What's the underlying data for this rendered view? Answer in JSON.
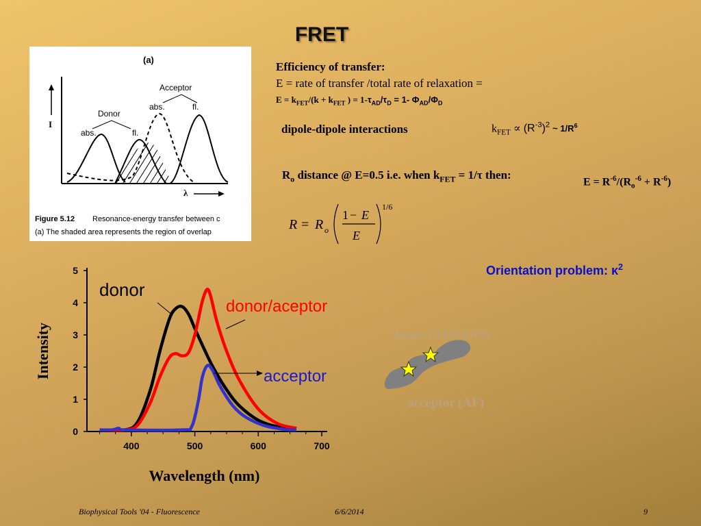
{
  "slide": {
    "title": "FRET",
    "footer": {
      "course": "Biophysical Tools '04 - Fluorescence",
      "date": "6/6/2014",
      "page": "9"
    }
  },
  "textbook_figure": {
    "panel_label": "(a)",
    "y_axis": "I",
    "x_axis": "λ",
    "donor_label": "Donor",
    "donor_abs": "abs.",
    "donor_fl": "fl.",
    "acceptor_label": "Acceptor",
    "acceptor_abs": "abs.",
    "acceptor_fl": "fl.",
    "caption_prefix": "Figure 5.12",
    "caption_line1": "Resonance-energy transfer between c",
    "caption_line2": "(a)  The shaded area represents the region of overlap"
  },
  "efficiency": {
    "heading": "Efficiency of transfer:",
    "definition": "E = rate of transfer /total rate of relaxation ="
  },
  "dipole": {
    "label": "dipole-dipole interactions",
    "approx": "~ 1/R"
  },
  "ro_line": {
    "text_a": "distance @ E=0.5 i.e. when k",
    "text_b": "= 1/τ then:"
  },
  "orientation": {
    "label": "Orientation problem: κ"
  },
  "molecule": {
    "donor_label": "donor (AEDANS)",
    "acceptor_label": "acceptor (AF)"
  },
  "chart_data": {
    "type": "line",
    "xlabel": "Wavelength (nm)",
    "ylabel": "Intensity",
    "xlim": [
      330,
      700
    ],
    "ylim": [
      0,
      5
    ],
    "x_ticks": [
      400,
      500,
      600,
      700
    ],
    "y_ticks": [
      0,
      1,
      2,
      3,
      4,
      5
    ],
    "series": [
      {
        "name": "donor",
        "color": "#000000",
        "x": [
          350,
          390,
          410,
          430,
          445,
          460,
          470,
          480,
          490,
          500,
          515,
          530,
          550,
          570,
          600,
          630,
          660
        ],
        "y": [
          0.05,
          0.05,
          0.3,
          1.3,
          2.5,
          3.5,
          3.82,
          3.88,
          3.65,
          3.2,
          2.55,
          1.95,
          1.3,
          0.8,
          0.35,
          0.15,
          0.08
        ]
      },
      {
        "name": "donor/aceptor",
        "color": "#ff0000",
        "x": [
          350,
          390,
          410,
          430,
          445,
          460,
          470,
          480,
          490,
          500,
          510,
          515,
          520,
          525,
          535,
          550,
          570,
          600,
          630,
          660
        ],
        "y": [
          0.05,
          0.05,
          0.2,
          0.9,
          1.7,
          2.3,
          2.42,
          2.35,
          2.45,
          3.0,
          3.9,
          4.25,
          4.42,
          4.2,
          3.4,
          2.5,
          1.6,
          0.7,
          0.25,
          0.1
        ]
      },
      {
        "name": "acceptor",
        "color": "#3333cc",
        "x": [
          350,
          370,
          380,
          390,
          480,
          495,
          505,
          512,
          520,
          528,
          540,
          560,
          580,
          610,
          640,
          660
        ],
        "y": [
          0.05,
          0.05,
          0.1,
          0.05,
          0.05,
          0.15,
          0.9,
          1.7,
          2.05,
          1.9,
          1.4,
          0.8,
          0.45,
          0.18,
          0.07,
          0.05
        ]
      }
    ]
  }
}
